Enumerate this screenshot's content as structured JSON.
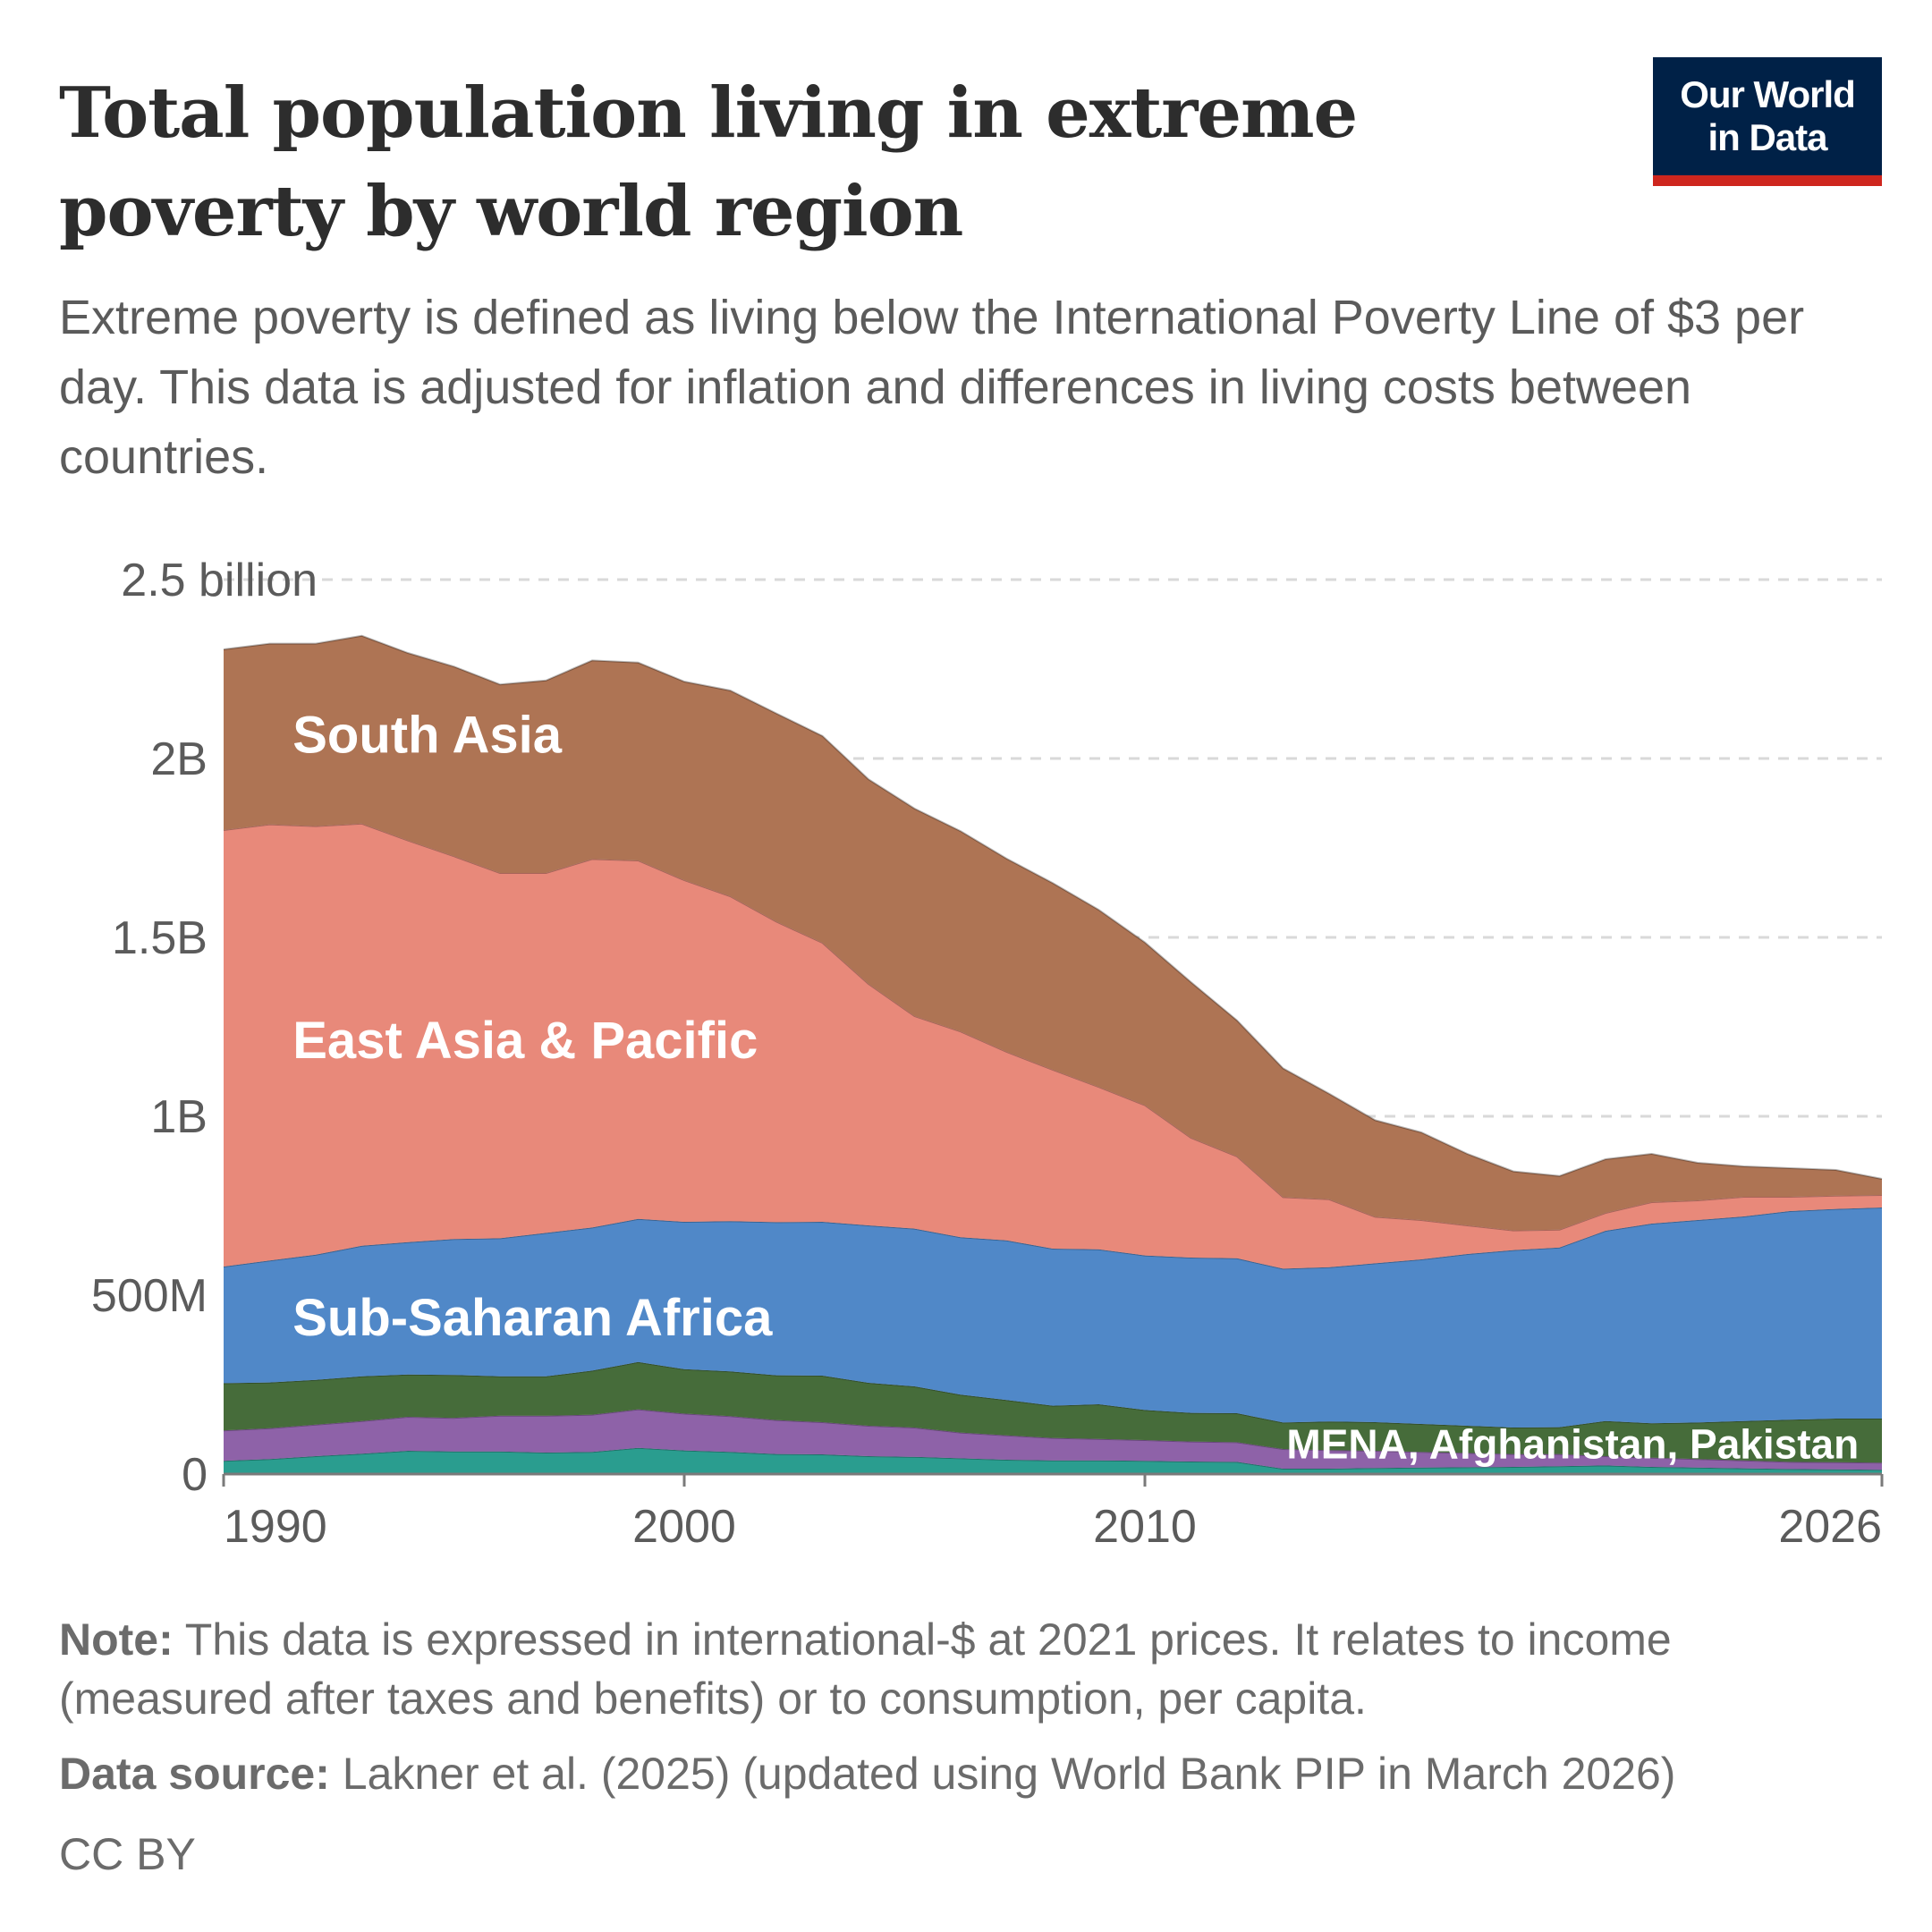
{
  "title": "Total population living in extreme poverty by world region",
  "subtitle": "Extreme poverty is defined as living below the International Poverty Line of $3 per day. This data is adjusted for inflation and differences in living costs between countries.",
  "logo": {
    "line1": "Our World",
    "line2": "in Data"
  },
  "colors": {
    "logo_bg": "#002147",
    "logo_accent": "#ce261e"
  },
  "chart_data": {
    "type": "area",
    "stacked": true,
    "yticks": [
      {
        "value": 0,
        "label": "0"
      },
      {
        "value": 500000000,
        "label": "500M"
      },
      {
        "value": 1000000000,
        "label": "1B"
      },
      {
        "value": 1500000000,
        "label": "1.5B"
      },
      {
        "value": 2000000000,
        "label": "2B"
      },
      {
        "value": 2500000000,
        "label": "2.5 billion"
      }
    ],
    "xticks": [
      1990,
      2000,
      2010,
      2026
    ],
    "xlim": [
      1990,
      2026
    ],
    "ylim": [
      0,
      2500000000
    ],
    "grid": true,
    "x": [
      1990,
      1991,
      1992,
      1993,
      1994,
      1995,
      1996,
      1997,
      1998,
      1999,
      2000,
      2001,
      2002,
      2003,
      2004,
      2005,
      2006,
      2007,
      2008,
      2009,
      2010,
      2011,
      2012,
      2013,
      2014,
      2015,
      2016,
      2017,
      2018,
      2019,
      2020,
      2021,
      2022,
      2023,
      2024,
      2025,
      2026
    ],
    "series": [
      {
        "name": "",
        "color": "#2a9d8f",
        "values": [
          37,
          42,
          50,
          57,
          65,
          63,
          63,
          60,
          62,
          73,
          66,
          62,
          56,
          55,
          50,
          48,
          44,
          40,
          38,
          38,
          37,
          35,
          34,
          15,
          15,
          17,
          18,
          19,
          20,
          22,
          24,
          20,
          18,
          16,
          14,
          13,
          12
        ]
      },
      {
        "name": "",
        "color": "#8e62a8",
        "values": [
          85,
          86,
          88,
          91,
          95,
          94,
          100,
          103,
          104,
          108,
          103,
          100,
          95,
          90,
          85,
          82,
          72,
          68,
          63,
          60,
          58,
          56,
          55,
          55,
          52,
          48,
          44,
          40,
          36,
          34,
          26,
          26,
          24,
          22,
          20,
          20,
          20
        ]
      },
      {
        "name": "MENA, Afghanistan, Pakistan",
        "color": "#466c3a",
        "values": [
          132,
          128,
          125,
          125,
          118,
          120,
          110,
          110,
          123,
          132,
          124,
          125,
          125,
          130,
          120,
          115,
          106,
          99,
          90,
          97,
          84,
          80,
          81,
          74,
          80,
          80,
          78,
          76,
          74,
          75,
          98,
          96,
          102,
          110,
          118,
          122,
          123
        ]
      },
      {
        "name": "Sub-Saharan Africa",
        "color": "#5088c8",
        "values": [
          326,
          341,
          350,
          365,
          370,
          380,
          386,
          401,
          400,
          400,
          412,
          420,
          428,
          430,
          440,
          441,
          440,
          446,
          439,
          433,
          432,
          434,
          433,
          430,
          431,
          444,
          460,
          480,
          496,
          502,
          532,
          558,
          566,
          572,
          583,
          586,
          590
        ]
      },
      {
        "name": "East Asia & Pacific",
        "color": "#e8897a",
        "values": [
          1220,
          1219,
          1198,
          1180,
          1123,
          1070,
          1021,
          1006,
          1030,
          1002,
          955,
          908,
          840,
          780,
          675,
          594,
          575,
          527,
          500,
          454,
          420,
          335,
          285,
          200,
          190,
          130,
          110,
          80,
          55,
          50,
          50,
          60,
          55,
          55,
          40,
          37,
          35
        ]
      },
      {
        "name": "South Asia",
        "color": "#ae7454",
        "values": [
          505,
          505,
          510,
          525,
          524,
          530,
          527,
          538,
          555,
          553,
          555,
          575,
          582,
          578,
          572,
          580,
          560,
          540,
          522,
          495,
          455,
          435,
          380,
          360,
          295,
          270,
          245,
          200,
          165,
          150,
          150,
          135,
          105,
          85,
          80,
          72,
          45
        ]
      }
    ],
    "value_unit": "millions"
  },
  "footer": {
    "note_label": "Note:",
    "note_text": " This data is expressed in international-$ at 2021 prices. It relates to income (measured after taxes and benefits) or to consumption, per capita.",
    "source_label": "Data source:",
    "source_text": " Lakner et al. (2025) (updated using World Bank PIP in March 2026)",
    "license": "CC BY"
  }
}
